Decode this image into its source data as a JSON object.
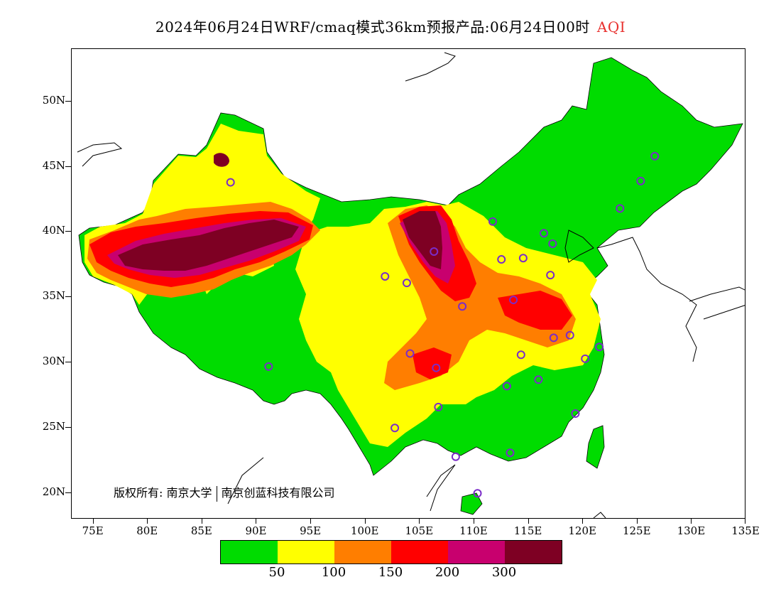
{
  "header": {
    "title": "2024年06月24日WRF/cmaq模式36km预报产品:06月24日00时",
    "variable": "AQI"
  },
  "axes": {
    "lat_labels": [
      "50N",
      "45N",
      "40N",
      "35N",
      "30N",
      "25N",
      "20N"
    ],
    "lat_values": [
      50,
      45,
      40,
      35,
      30,
      25,
      20
    ],
    "lon_labels": [
      "75E",
      "80E",
      "85E",
      "90E",
      "95E",
      "100E",
      "105E",
      "110E",
      "115E",
      "120E",
      "125E",
      "130E",
      "135E"
    ],
    "lon_values": [
      75,
      80,
      85,
      90,
      95,
      100,
      105,
      110,
      115,
      120,
      125,
      130,
      135
    ],
    "lon_range": [
      73,
      135
    ],
    "lat_range": [
      18,
      54
    ]
  },
  "legend": {
    "colors": [
      "#00dc00",
      "#ffff00",
      "#ff7e00",
      "#ff0000",
      "#c8006e",
      "#7e0023"
    ],
    "labels": [
      "50",
      "100",
      "150",
      "200",
      "300"
    ]
  },
  "copyright": {
    "owner_label": "版权所有:",
    "org1": "南京大学",
    "org2": "南京创蓝科技有限公司"
  },
  "stations": [
    {
      "lon": 87.6,
      "lat": 43.8
    },
    {
      "lon": 91.1,
      "lat": 29.7
    },
    {
      "lon": 101.8,
      "lat": 36.6
    },
    {
      "lon": 103.8,
      "lat": 36.1
    },
    {
      "lon": 106.3,
      "lat": 38.5
    },
    {
      "lon": 108.9,
      "lat": 34.3
    },
    {
      "lon": 104.1,
      "lat": 30.7
    },
    {
      "lon": 106.5,
      "lat": 29.6
    },
    {
      "lon": 106.7,
      "lat": 26.6
    },
    {
      "lon": 102.7,
      "lat": 25.0
    },
    {
      "lon": 108.3,
      "lat": 22.8
    },
    {
      "lon": 110.3,
      "lat": 20.0
    },
    {
      "lon": 113.3,
      "lat": 23.1
    },
    {
      "lon": 113.0,
      "lat": 28.2
    },
    {
      "lon": 114.3,
      "lat": 30.6
    },
    {
      "lon": 115.9,
      "lat": 28.7
    },
    {
      "lon": 119.3,
      "lat": 26.1
    },
    {
      "lon": 120.2,
      "lat": 30.3
    },
    {
      "lon": 121.5,
      "lat": 31.2
    },
    {
      "lon": 118.8,
      "lat": 32.1
    },
    {
      "lon": 117.3,
      "lat": 31.9
    },
    {
      "lon": 113.6,
      "lat": 34.8
    },
    {
      "lon": 117.0,
      "lat": 36.7
    },
    {
      "lon": 114.5,
      "lat": 38.0
    },
    {
      "lon": 112.5,
      "lat": 37.9
    },
    {
      "lon": 116.4,
      "lat": 39.9
    },
    {
      "lon": 117.2,
      "lat": 39.1
    },
    {
      "lon": 111.7,
      "lat": 40.8
    },
    {
      "lon": 123.4,
      "lat": 41.8
    },
    {
      "lon": 125.3,
      "lat": 43.9
    },
    {
      "lon": 126.6,
      "lat": 45.8
    }
  ]
}
